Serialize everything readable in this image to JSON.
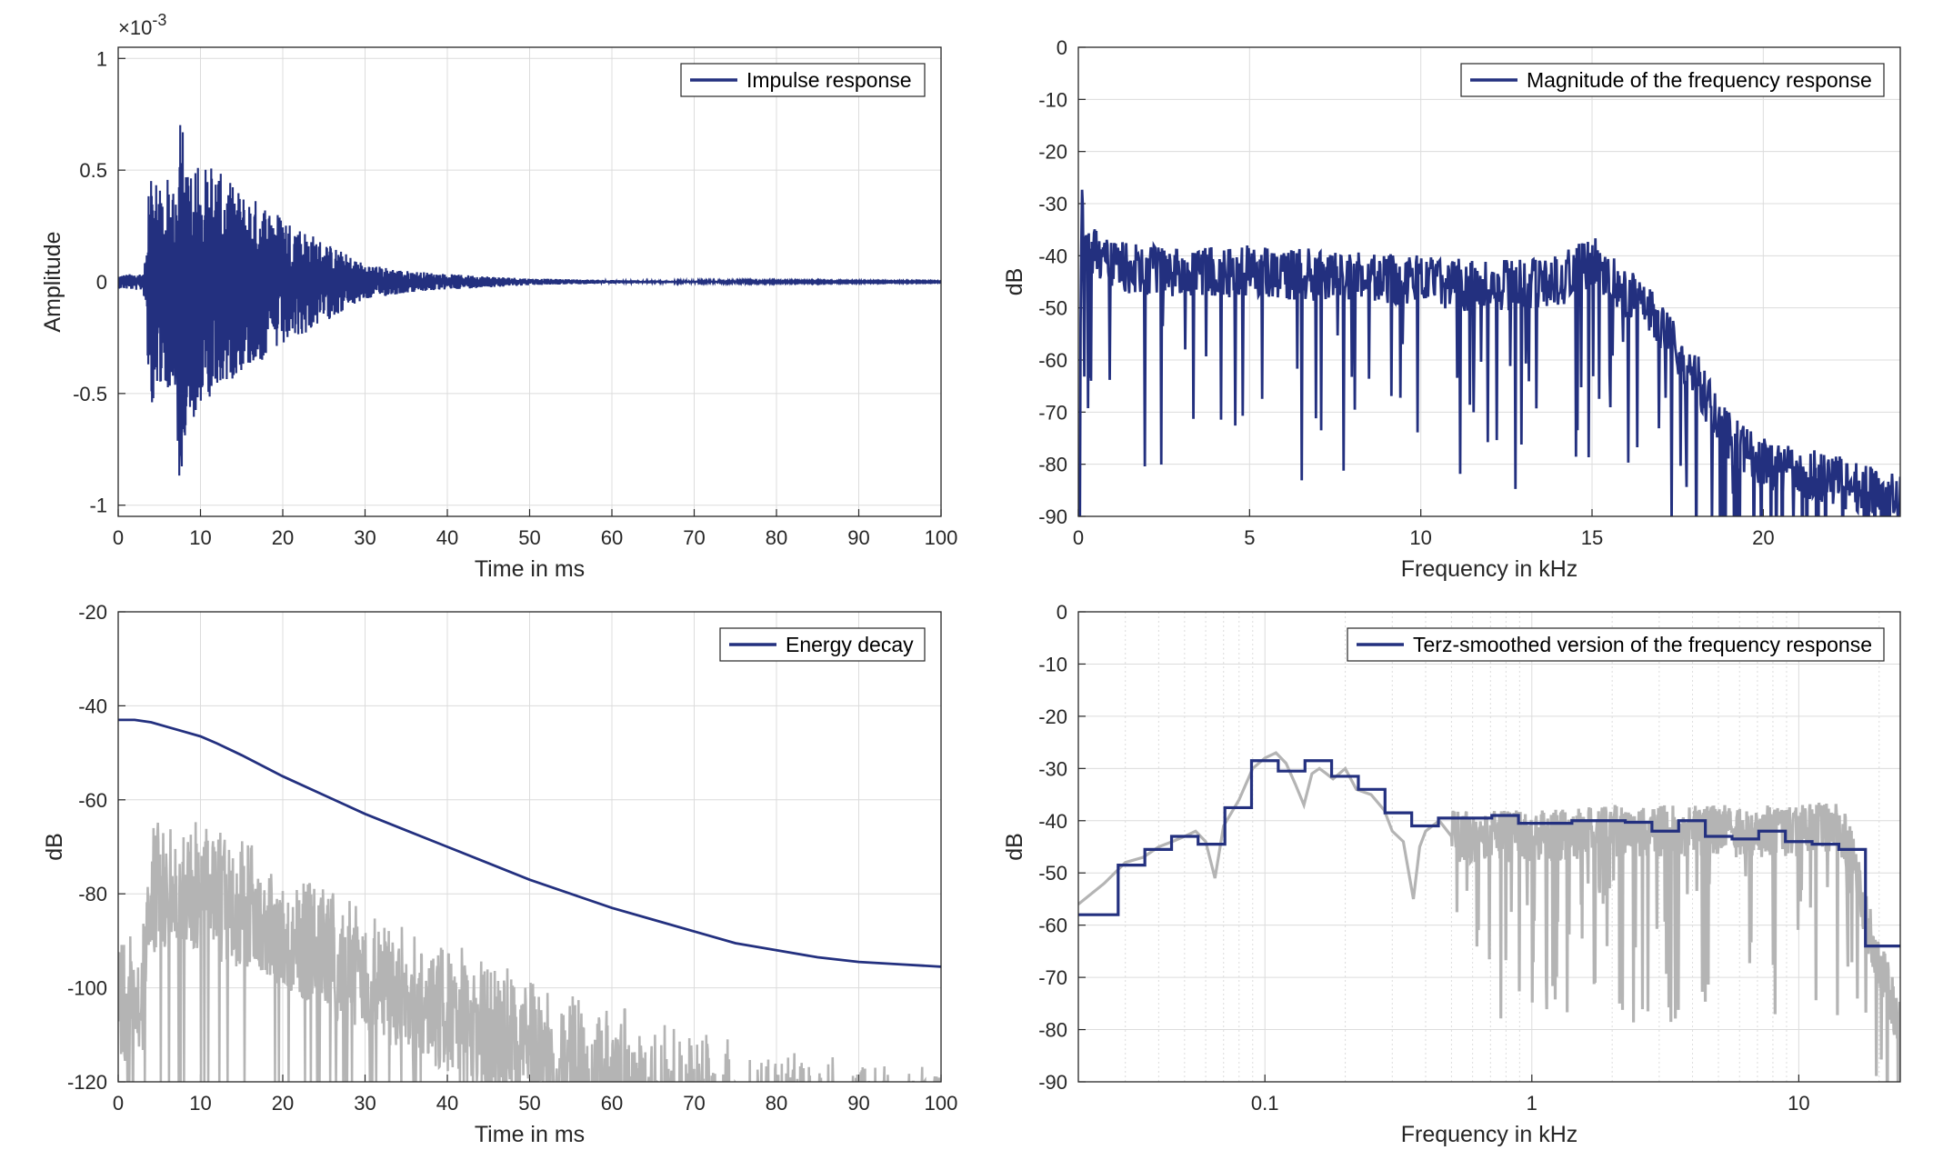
{
  "chart_data": [
    {
      "id": "ir",
      "type": "line",
      "title": "",
      "xlabel": "Time in ms",
      "ylabel": "Amplitude",
      "y_multiplier": "×10",
      "y_multiplier_exp": "-3",
      "xlim": [
        0,
        100
      ],
      "ylim": [
        -1.05,
        1.05
      ],
      "xticks": [
        0,
        10,
        20,
        30,
        40,
        50,
        60,
        70,
        80,
        90,
        100
      ],
      "yticks": [
        -1,
        -0.5,
        0,
        0.5,
        1
      ],
      "ytick_labels": [
        "-1",
        "-0.5",
        "0",
        "0.5",
        "1"
      ],
      "grid": true,
      "legend_position": "top-right",
      "series": [
        {
          "name": "Impulse response",
          "color": "#23307f",
          "envelope": [
            [
              0,
              0.03
            ],
            [
              3,
              0.04
            ],
            [
              3.5,
              0.15
            ],
            [
              3.7,
              0.62
            ],
            [
              4,
              0.6
            ],
            [
              5,
              0.45
            ],
            [
              7,
              0.5
            ],
            [
              7.5,
              0.96
            ],
            [
              8,
              0.7
            ],
            [
              10,
              0.55
            ],
            [
              12,
              0.5
            ],
            [
              15,
              0.4
            ],
            [
              18,
              0.35
            ],
            [
              20,
              0.3
            ],
            [
              22,
              0.25
            ],
            [
              25,
              0.18
            ],
            [
              30,
              0.08
            ],
            [
              35,
              0.05
            ],
            [
              40,
              0.035
            ],
            [
              45,
              0.025
            ],
            [
              50,
              0.015
            ],
            [
              60,
              0.008
            ],
            [
              70,
              0.005
            ],
            [
              80,
              0.003
            ],
            [
              100,
              0.002
            ]
          ]
        }
      ]
    },
    {
      "id": "fr",
      "type": "line",
      "title": "",
      "xlabel": "Frequency in kHz",
      "ylabel": "dB",
      "xlim": [
        0,
        24
      ],
      "ylim": [
        -90,
        0
      ],
      "xticks": [
        0,
        5,
        10,
        15,
        20
      ],
      "yticks": [
        -90,
        -80,
        -70,
        -60,
        -50,
        -40,
        -30,
        -20,
        -10,
        0
      ],
      "grid": true,
      "legend_position": "top-right",
      "series": [
        {
          "name": "Magnitude of the frequency response",
          "color": "#23307f",
          "envelope": [
            [
              0,
              -90
            ],
            [
              0.1,
              -27
            ],
            [
              0.3,
              -33
            ],
            [
              1,
              -37
            ],
            [
              2,
              -38
            ],
            [
              5,
              -38
            ],
            [
              8,
              -39
            ],
            [
              10,
              -40
            ],
            [
              12,
              -41
            ],
            [
              14,
              -40
            ],
            [
              15,
              -36
            ],
            [
              16,
              -42
            ],
            [
              17,
              -48
            ],
            [
              18,
              -58
            ],
            [
              19,
              -70
            ],
            [
              20,
              -75
            ],
            [
              22,
              -78
            ],
            [
              24,
              -82
            ]
          ]
        }
      ]
    },
    {
      "id": "ed",
      "type": "line",
      "title": "",
      "xlabel": "Time in ms",
      "ylabel": "dB",
      "xlim": [
        0,
        100
      ],
      "ylim": [
        -120,
        -20
      ],
      "xticks": [
        0,
        10,
        20,
        30,
        40,
        50,
        60,
        70,
        80,
        90,
        100
      ],
      "yticks": [
        -120,
        -100,
        -80,
        -60,
        -40,
        -20
      ],
      "grid": true,
      "legend_position": "top-right",
      "series": [
        {
          "name": "Energy decay",
          "color": "#23307f",
          "x": [
            0,
            2,
            4,
            6,
            8,
            10,
            12,
            15,
            20,
            25,
            30,
            35,
            40,
            45,
            50,
            55,
            60,
            65,
            70,
            75,
            80,
            85,
            90,
            95,
            100
          ],
          "y": [
            -43,
            -43,
            -43.5,
            -44.5,
            -45.5,
            -46.5,
            -48,
            -50.5,
            -55,
            -59,
            -63,
            -66.5,
            -70,
            -73.5,
            -77,
            -80,
            -83,
            -85.5,
            -88,
            -90.5,
            -92,
            -93.5,
            -94.5,
            -95,
            -95.5
          ]
        },
        {
          "name": "",
          "color": "#b4b4b4",
          "envelope": [
            [
              0,
              -90
            ],
            [
              3,
              -86
            ],
            [
              3.5,
              -66
            ],
            [
              5,
              -64
            ],
            [
              8,
              -62
            ],
            [
              10,
              -65
            ],
            [
              15,
              -68
            ],
            [
              20,
              -72
            ],
            [
              25,
              -78
            ],
            [
              30,
              -82
            ],
            [
              35,
              -86
            ],
            [
              40,
              -90
            ],
            [
              45,
              -94
            ],
            [
              50,
              -97
            ],
            [
              55,
              -100
            ],
            [
              60,
              -103
            ],
            [
              65,
              -106
            ],
            [
              70,
              -109
            ],
            [
              75,
              -111
            ],
            [
              80,
              -113
            ],
            [
              90,
              -115
            ],
            [
              100,
              -117
            ]
          ]
        }
      ]
    },
    {
      "id": "terz",
      "type": "line",
      "title": "",
      "xlabel": "Frequency in kHz",
      "ylabel": "dB",
      "x_scale": "log",
      "xlim": [
        0.02,
        24
      ],
      "ylim": [
        -90,
        0
      ],
      "xticks": [
        0.1,
        1,
        10
      ],
      "xtick_labels": [
        "0.1",
        "1",
        "10"
      ],
      "yticks": [
        -90,
        -80,
        -70,
        -60,
        -50,
        -40,
        -30,
        -20,
        -10,
        0
      ],
      "grid": true,
      "legend_position": "top-right",
      "series": [
        {
          "name": "Terz-smoothed version of the frequency response",
          "color": "#23307f",
          "x": [
            0.02,
            0.0282,
            0.0282,
            0.0355,
            0.0355,
            0.0447,
            0.0447,
            0.0562,
            0.0562,
            0.0708,
            0.0708,
            0.0891,
            0.0891,
            0.1122,
            0.1122,
            0.1413,
            0.1413,
            0.1778,
            0.1778,
            0.2239,
            0.2239,
            0.2818,
            0.2818,
            0.3548,
            0.3548,
            0.4467,
            0.4467,
            0.5623,
            0.5623,
            0.7079,
            0.7079,
            0.8913,
            0.8913,
            1.122,
            1.122,
            1.413,
            1.413,
            1.778,
            1.778,
            2.239,
            2.239,
            2.818,
            2.818,
            3.548,
            3.548,
            4.467,
            4.467,
            5.623,
            5.623,
            7.079,
            7.079,
            8.913,
            8.913,
            11.22,
            11.22,
            14.13,
            14.13,
            17.78,
            17.78,
            24
          ],
          "y": [
            -58,
            -58,
            -48.5,
            -48.5,
            -45.5,
            -45.5,
            -43,
            -43,
            -44.5,
            -44.5,
            -37.5,
            -37.5,
            -28.5,
            -28.5,
            -30.5,
            -30.5,
            -28.5,
            -28.5,
            -31.5,
            -31.5,
            -34,
            -34,
            -38.5,
            -38.5,
            -41,
            -41,
            -39.5,
            -39.5,
            -39.5,
            -39.5,
            -39,
            -39,
            -40.5,
            -40.5,
            -40.5,
            -40.5,
            -40,
            -40,
            -40,
            -40,
            -40.3,
            -40.3,
            -42,
            -42,
            -40,
            -40,
            -43,
            -43,
            -43.5,
            -43.5,
            -42,
            -42,
            -44,
            -44,
            -44.5,
            -44.5,
            -45.5,
            -45.5,
            -64,
            -64
          ]
        },
        {
          "name": "",
          "color": "#b4b4b4",
          "x": [
            0.02,
            0.025,
            0.03,
            0.035,
            0.04,
            0.045,
            0.05,
            0.055,
            0.06,
            0.065,
            0.07,
            0.08,
            0.09,
            0.1,
            0.11,
            0.12,
            0.13,
            0.14,
            0.15,
            0.16,
            0.17,
            0.18,
            0.2,
            0.22,
            0.25,
            0.28,
            0.3,
            0.33,
            0.36,
            0.38,
            0.4,
            0.45,
            0.5
          ],
          "y": [
            -56,
            -52,
            -48,
            -47,
            -45,
            -44,
            -43,
            -42,
            -44,
            -51,
            -41,
            -36,
            -30,
            -28,
            -27,
            -29,
            -33,
            -37,
            -31,
            -30,
            -31,
            -32,
            -30,
            -34,
            -35,
            -38,
            -42,
            -44,
            -55,
            -45,
            -42,
            -40,
            -43
          ],
          "noisy_from": 0.5,
          "envelope": [
            [
              0.5,
              -38
            ],
            [
              1,
              -38
            ],
            [
              2,
              -37
            ],
            [
              5,
              -37
            ],
            [
              10,
              -37
            ],
            [
              14,
              -36
            ],
            [
              16,
              -42
            ],
            [
              18,
              -55
            ],
            [
              20,
              -62
            ],
            [
              24,
              -75
            ]
          ]
        }
      ]
    }
  ]
}
